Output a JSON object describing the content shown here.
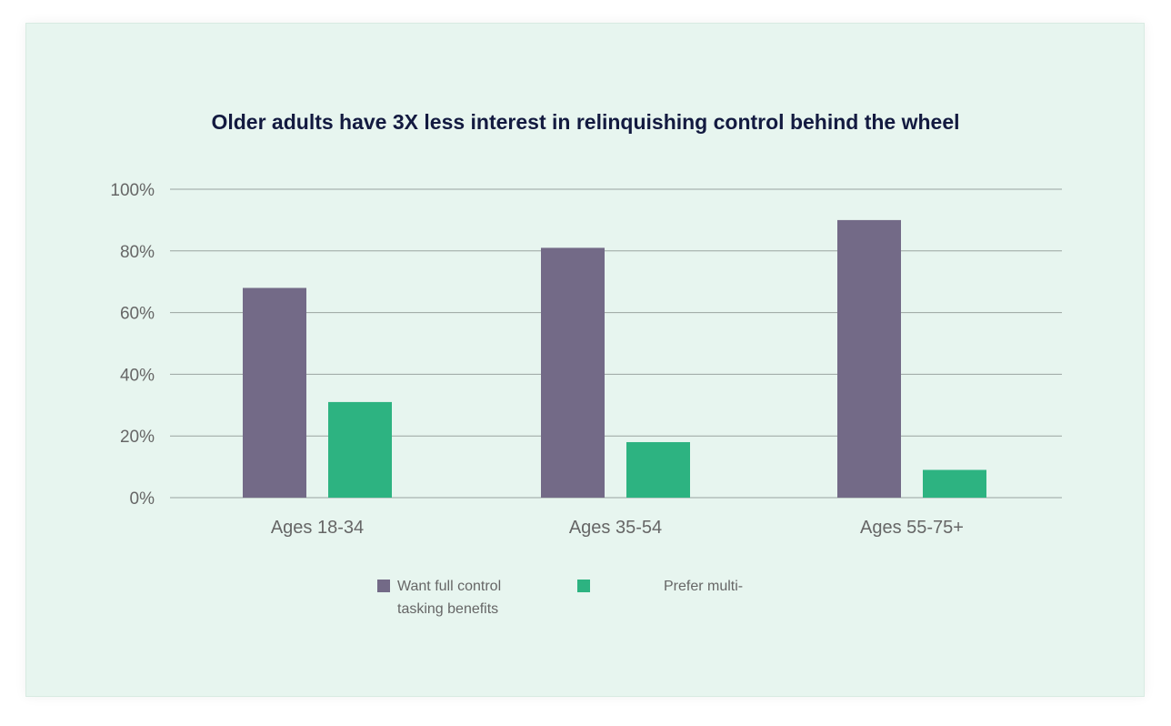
{
  "colors": {
    "card_background": "#e7f5ef",
    "series_want_full_control": "#736a87",
    "series_prefer_multitasking": "#2db381",
    "gridline": "#9aa3a0",
    "axis_text": "#666666",
    "title_text": "#131a40"
  },
  "chart_data": {
    "type": "bar",
    "title": "Older adults have 3X less interest in relinquishing control behind the wheel",
    "xlabel": "",
    "ylabel": "",
    "categories": [
      "Ages 18-34",
      "Ages 35-54",
      "Ages 55-75+"
    ],
    "series": [
      {
        "name": "Want full control",
        "values": [
          68,
          81,
          90
        ]
      },
      {
        "name": "Prefer multi-tasking benefits",
        "values": [
          31,
          18,
          9
        ]
      }
    ],
    "ylim": [
      0,
      100
    ],
    "yticks": [
      "0%",
      "20%",
      "40%",
      "60%",
      "80%",
      "100%"
    ],
    "grid": true,
    "legend_position": "bottom"
  },
  "legend": {
    "item1_label": "Want full control",
    "item2_label_line1": "Prefer multi-",
    "item2_label_line2": "tasking benefits"
  }
}
